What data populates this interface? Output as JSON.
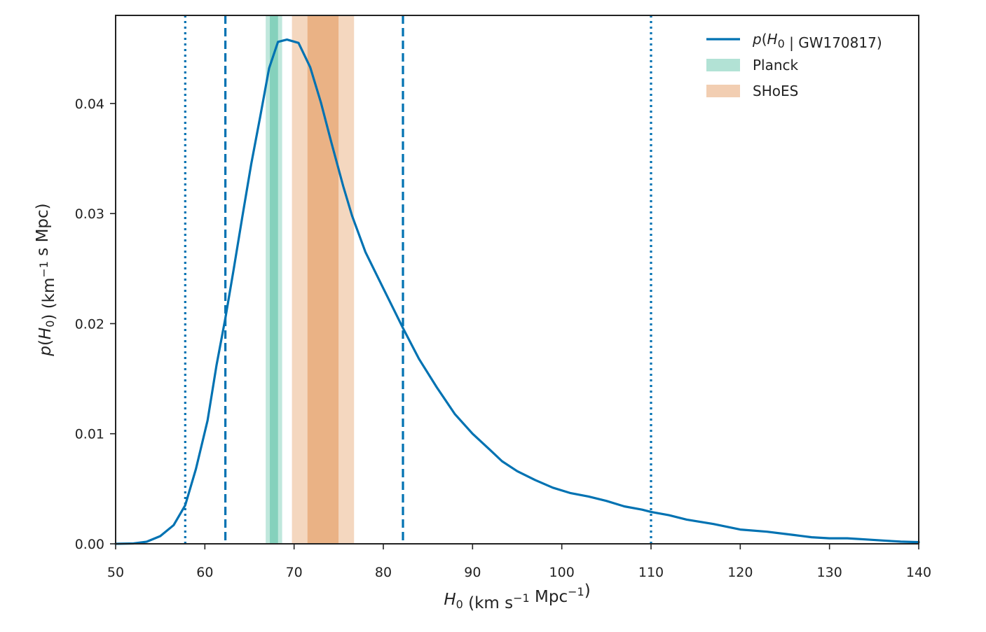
{
  "chart_data": {
    "type": "line",
    "xlabel": "H_0 (km s^-1 Mpc^-1)",
    "ylabel": "p(H_0) (km^-1 s Mpc)",
    "xlim": [
      50,
      140
    ],
    "ylim": [
      0,
      0.048
    ],
    "x_ticks": [
      "50",
      "60",
      "70",
      "80",
      "90",
      "100",
      "110",
      "120",
      "130",
      "140"
    ],
    "y_ticks": [
      "0.00",
      "0.01",
      "0.02",
      "0.03",
      "0.04"
    ],
    "grid": false,
    "legend": "top-right",
    "series": [
      {
        "name": "p(H0 | GW170817)",
        "color": "#0072B2",
        "x": [
          50,
          52,
          53.5,
          55,
          56.5,
          57.8,
          59,
          60.3,
          61.3,
          62.3,
          63.2,
          64.2,
          65.2,
          66.2,
          67.2,
          68.2,
          69.2,
          70.5,
          71.8,
          73,
          74.2,
          75.5,
          76.5,
          78,
          80,
          82.2,
          84,
          86,
          88,
          90,
          92,
          93.3,
          95,
          97,
          99,
          101,
          103,
          105,
          107,
          109,
          110,
          112,
          114,
          117,
          120,
          123,
          126,
          128,
          130,
          132,
          134,
          136,
          138,
          140
        ],
        "y": [
          0.0,
          3e-05,
          0.0002,
          0.0007,
          0.0017,
          0.0035,
          0.0068,
          0.0112,
          0.0162,
          0.0205,
          0.0248,
          0.0297,
          0.0345,
          0.0388,
          0.0432,
          0.0456,
          0.0458,
          0.0455,
          0.0433,
          0.0401,
          0.0364,
          0.0325,
          0.0298,
          0.0265,
          0.0232,
          0.0196,
          0.0168,
          0.0142,
          0.0118,
          0.01,
          0.0085,
          0.0075,
          0.0066,
          0.0058,
          0.0051,
          0.0046,
          0.0043,
          0.0039,
          0.0034,
          0.0031,
          0.0029,
          0.0026,
          0.0022,
          0.0018,
          0.0013,
          0.0011,
          0.0008,
          0.0006,
          0.0005,
          0.0005,
          0.0004,
          0.0003,
          0.0002,
          0.00015
        ]
      }
    ],
    "vlines": [
      {
        "x": 57.8,
        "style": "dotted",
        "color": "#0072B2"
      },
      {
        "x": 62.3,
        "style": "dashed",
        "color": "#0072B2"
      },
      {
        "x": 82.2,
        "style": "dashed",
        "color": "#0072B2"
      },
      {
        "x": 110,
        "style": "dotted",
        "color": "#0072B2"
      }
    ],
    "bands": [
      {
        "name": "Planck",
        "color": "#009E73",
        "center": 67.74,
        "sigma1": [
          67.28,
          68.2
        ],
        "sigma2": [
          66.82,
          68.66
        ]
      },
      {
        "name": "SHoES",
        "color": "#D55E00",
        "center": 73.24,
        "sigma1": [
          71.5,
          74.98
        ],
        "sigma2": [
          69.76,
          76.72
        ]
      }
    ],
    "legend_entries": [
      {
        "label": "p(H0 | GW170817)"
      },
      {
        "label": "Planck"
      },
      {
        "label": "SHoES"
      }
    ]
  }
}
